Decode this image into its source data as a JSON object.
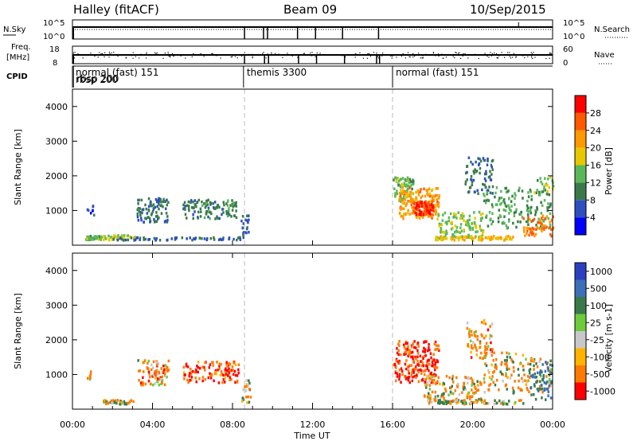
{
  "header": {
    "radar": "Halley (fitACF)",
    "beam": "Beam 09",
    "date": "10/Sep/2015"
  },
  "strips": {
    "nsky_label": "N.Sky",
    "nsearch_label": "N.Search",
    "nsky_ticks": [
      "10^5",
      "10^0"
    ],
    "nsearch_ticks": [
      "10^5",
      "10^0"
    ],
    "freq_label_line1": "Freq.",
    "freq_label_line2": "[MHz]",
    "freq_ticks": [
      "18",
      "8"
    ],
    "nave_label": "Nave",
    "nave_ticks": [
      "60",
      "0"
    ],
    "cpid_label": "CPID",
    "cpid_segments": [
      {
        "label": "normal (fast) 151",
        "start_h": 0.0
      },
      {
        "label": "rbsp 200",
        "start_h": 0.05
      },
      {
        "label": "themis 3300",
        "start_h": 8.55
      },
      {
        "label": "normal (fast) 151",
        "start_h": 16.0
      }
    ]
  },
  "axes": {
    "xlabel": "Time UT",
    "ylabel_power": "Slant Range [km]",
    "ylabel_velocity": "Slant Range [km]",
    "x_ticks": [
      "00:00",
      "04:00",
      "08:00",
      "12:00",
      "16:00",
      "20:00",
      "00:00"
    ],
    "y_ticks": [
      "1000",
      "2000",
      "3000",
      "4000"
    ]
  },
  "colorbars": {
    "power": {
      "title": "Power [dB]",
      "labels": [
        "4",
        "8",
        "12",
        "16",
        "20",
        "24",
        "28"
      ],
      "colors": [
        "#0000ff",
        "#2d4fc0",
        "#3a7a4a",
        "#5ab85a",
        "#e8c800",
        "#ff9900",
        "#ff5a00",
        "#ff0000"
      ]
    },
    "velocity": {
      "title": "Velocity [m s-1]",
      "labels": [
        "1000",
        "500",
        "100",
        "25",
        "-25",
        "-100",
        "-500",
        "-1000"
      ],
      "colors": [
        "#2b3fbf",
        "#3b6fb8",
        "#3a7a4a",
        "#6ccc3c",
        "#c8c8c8",
        "#ffb400",
        "#ff7a00",
        "#ff0000"
      ]
    }
  },
  "chart_data": [
    {
      "type": "heatmap",
      "title": "Power",
      "x_unit": "hours UT",
      "xlim": [
        0,
        24
      ],
      "ylim": [
        0,
        4500
      ],
      "cbar_range": [
        0,
        32
      ],
      "patches": [
        {
          "x": [
            0.6,
            1.5
          ],
          "y": [
            180,
            300
          ],
          "value": 14,
          "n": 40
        },
        {
          "x": [
            1.5,
            3.1
          ],
          "y": [
            180,
            320
          ],
          "value": 16,
          "n": 40
        },
        {
          "x": [
            0.7,
            1.1
          ],
          "y": [
            900,
            1200
          ],
          "value": 6,
          "n": 8
        },
        {
          "x": [
            3.2,
            4.8
          ],
          "y": [
            700,
            1400
          ],
          "value": 9,
          "n": 90
        },
        {
          "x": [
            5.5,
            8.2
          ],
          "y": [
            800,
            1350
          ],
          "value": 10,
          "n": 110
        },
        {
          "x": [
            2.0,
            8.5
          ],
          "y": [
            180,
            260
          ],
          "value": 7,
          "n": 60
        },
        {
          "x": [
            8.4,
            8.8
          ],
          "y": [
            200,
            900
          ],
          "value": 8,
          "n": 20
        },
        {
          "x": [
            16.0,
            17.0
          ],
          "y": [
            1300,
            2000
          ],
          "value": 14,
          "n": 70
        },
        {
          "x": [
            16.3,
            18.3
          ],
          "y": [
            800,
            1700
          ],
          "value": 22,
          "n": 160
        },
        {
          "x": [
            17.0,
            18.0
          ],
          "y": [
            900,
            1300
          ],
          "value": 28,
          "n": 80
        },
        {
          "x": [
            18.2,
            20.5
          ],
          "y": [
            200,
            1000
          ],
          "value": 15,
          "n": 120
        },
        {
          "x": [
            18.0,
            22.0
          ],
          "y": [
            180,
            300
          ],
          "value": 20,
          "n": 80
        },
        {
          "x": [
            19.6,
            21.0
          ],
          "y": [
            1500,
            2600
          ],
          "value": 9,
          "n": 70
        },
        {
          "x": [
            20.5,
            23.9
          ],
          "y": [
            500,
            1700
          ],
          "value": 12,
          "n": 150
        },
        {
          "x": [
            22.5,
            24.0
          ],
          "y": [
            300,
            900
          ],
          "value": 24,
          "n": 60
        },
        {
          "x": [
            23.0,
            24.0
          ],
          "y": [
            1500,
            2000
          ],
          "value": 14,
          "n": 20
        }
      ]
    },
    {
      "type": "heatmap",
      "title": "Velocity",
      "x_unit": "hours UT",
      "xlim": [
        0,
        24
      ],
      "ylim": [
        0,
        4500
      ],
      "cbar_range": [
        -1200,
        1200
      ],
      "patches": [
        {
          "x": [
            1.5,
            3.0
          ],
          "y": [
            180,
            300
          ],
          "value": 50,
          "n": 40
        },
        {
          "x": [
            0.7,
            1.0
          ],
          "y": [
            900,
            1200
          ],
          "value": -100,
          "n": 6
        },
        {
          "x": [
            3.2,
            4.8
          ],
          "y": [
            700,
            1450
          ],
          "value": -150,
          "n": 90
        },
        {
          "x": [
            5.5,
            8.3
          ],
          "y": [
            800,
            1400
          ],
          "value": -250,
          "n": 110
        },
        {
          "x": [
            8.4,
            8.9
          ],
          "y": [
            200,
            900
          ],
          "value": -60,
          "n": 20
        },
        {
          "x": [
            16.0,
            18.3
          ],
          "y": [
            800,
            2000
          ],
          "value": -350,
          "n": 200
        },
        {
          "x": [
            17.5,
            20.5
          ],
          "y": [
            200,
            1000
          ],
          "value": -80,
          "n": 140
        },
        {
          "x": [
            19.6,
            21.0
          ],
          "y": [
            1500,
            2600
          ],
          "value": -150,
          "n": 70
        },
        {
          "x": [
            20.5,
            23.9
          ],
          "y": [
            500,
            1700
          ],
          "value": -60,
          "n": 140
        },
        {
          "x": [
            22.8,
            24.0
          ],
          "y": [
            300,
            1400
          ],
          "value": 300,
          "n": 60
        },
        {
          "x": [
            18.0,
            22.5
          ],
          "y": [
            180,
            300
          ],
          "value": 60,
          "n": 70
        }
      ]
    }
  ]
}
